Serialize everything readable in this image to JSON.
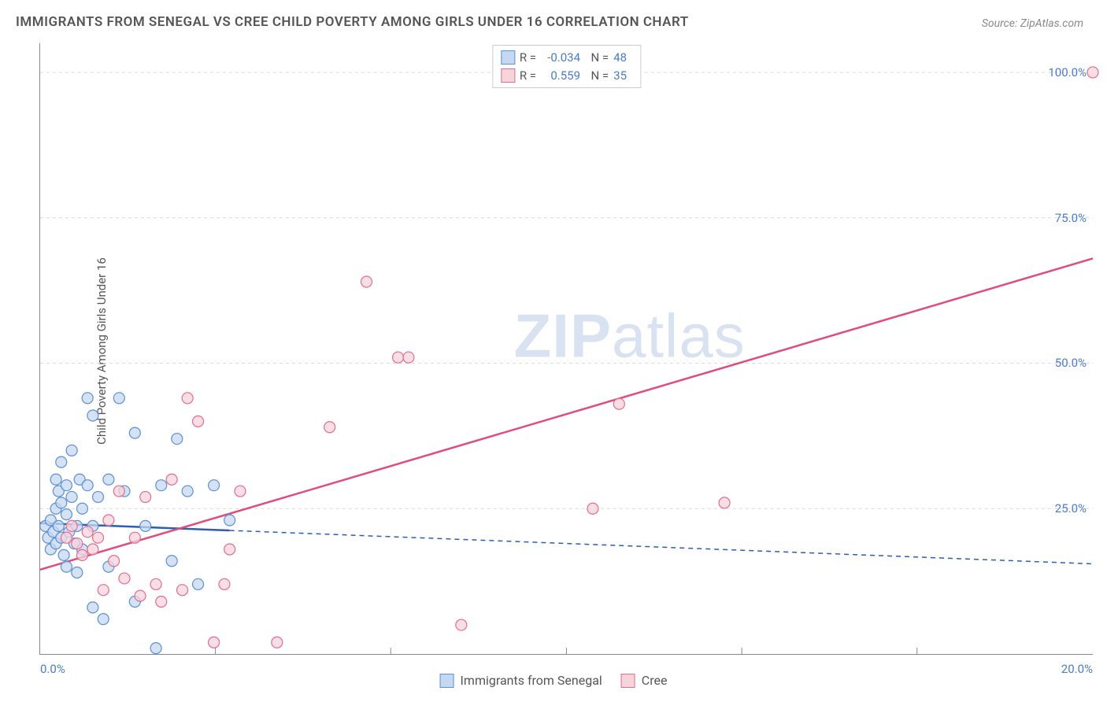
{
  "title": "IMMIGRANTS FROM SENEGAL VS CREE CHILD POVERTY AMONG GIRLS UNDER 16 CORRELATION CHART",
  "source": "Source: ZipAtlas.com",
  "y_axis_label": "Child Poverty Among Girls Under 16",
  "watermark": {
    "bold": "ZIP",
    "rest": "atlas"
  },
  "chart": {
    "type": "scatter",
    "x_domain": [
      0,
      20
    ],
    "y_domain": [
      0,
      105
    ],
    "x_ticks": [
      0,
      20
    ],
    "x_tick_labels": [
      "0.0%",
      "20.0%"
    ],
    "x_minor_ticks": [
      3.33,
      6.66,
      10,
      13.33,
      16.66
    ],
    "y_ticks": [
      25,
      50,
      75,
      100
    ],
    "y_tick_labels": [
      "25.0%",
      "50.0%",
      "75.0%",
      "100.0%"
    ],
    "grid_color": "#d8d8d8",
    "grid_dash": "4 4",
    "background": "#ffffff",
    "marker_radius": 7,
    "marker_stroke_width": 1.2,
    "line_width": 2.5,
    "series": [
      {
        "key": "senegal",
        "label": "Immigrants from Senegal",
        "fill": "#c5d8f0",
        "stroke": "#5b8fd6",
        "line_color": "#2b5fb0",
        "R": "-0.034",
        "N": "48",
        "regression": {
          "x1": 0,
          "y1": 22.5,
          "x2": 20,
          "y2": 15.5,
          "solid_until_x": 3.6
        },
        "points": [
          [
            0.1,
            22
          ],
          [
            0.15,
            20
          ],
          [
            0.2,
            23
          ],
          [
            0.2,
            18
          ],
          [
            0.25,
            21
          ],
          [
            0.3,
            30
          ],
          [
            0.3,
            25
          ],
          [
            0.3,
            19
          ],
          [
            0.35,
            28
          ],
          [
            0.35,
            22
          ],
          [
            0.4,
            33
          ],
          [
            0.4,
            26
          ],
          [
            0.4,
            20
          ],
          [
            0.45,
            17
          ],
          [
            0.5,
            29
          ],
          [
            0.5,
            24
          ],
          [
            0.5,
            15
          ],
          [
            0.55,
            21
          ],
          [
            0.6,
            35
          ],
          [
            0.6,
            27
          ],
          [
            0.65,
            19
          ],
          [
            0.7,
            22
          ],
          [
            0.7,
            14
          ],
          [
            0.75,
            30
          ],
          [
            0.8,
            25
          ],
          [
            0.8,
            18
          ],
          [
            0.9,
            44
          ],
          [
            0.9,
            29
          ],
          [
            1.0,
            41
          ],
          [
            1.0,
            22
          ],
          [
            1.0,
            8
          ],
          [
            1.1,
            27
          ],
          [
            1.2,
            6
          ],
          [
            1.3,
            30
          ],
          [
            1.3,
            15
          ],
          [
            1.5,
            44
          ],
          [
            1.6,
            28
          ],
          [
            1.8,
            38
          ],
          [
            1.8,
            9
          ],
          [
            2.0,
            22
          ],
          [
            2.2,
            1
          ],
          [
            2.3,
            29
          ],
          [
            2.5,
            16
          ],
          [
            2.6,
            37
          ],
          [
            2.8,
            28
          ],
          [
            3.0,
            12
          ],
          [
            3.3,
            29
          ],
          [
            3.6,
            23
          ]
        ]
      },
      {
        "key": "cree",
        "label": "Cree",
        "fill": "#f7d3dc",
        "stroke": "#e06d8e",
        "line_color": "#e04d7b",
        "R": "0.559",
        "N": "35",
        "regression": {
          "x1": 0,
          "y1": 14.5,
          "x2": 20,
          "y2": 68,
          "solid_until_x": 20
        },
        "points": [
          [
            0.5,
            20
          ],
          [
            0.6,
            22
          ],
          [
            0.7,
            19
          ],
          [
            0.8,
            17
          ],
          [
            0.9,
            21
          ],
          [
            1.0,
            18
          ],
          [
            1.1,
            20
          ],
          [
            1.2,
            11
          ],
          [
            1.3,
            23
          ],
          [
            1.4,
            16
          ],
          [
            1.5,
            28
          ],
          [
            1.6,
            13
          ],
          [
            1.8,
            20
          ],
          [
            1.9,
            10
          ],
          [
            2.0,
            27
          ],
          [
            2.2,
            12
          ],
          [
            2.3,
            9
          ],
          [
            2.5,
            30
          ],
          [
            2.7,
            11
          ],
          [
            2.8,
            44
          ],
          [
            3.0,
            40
          ],
          [
            3.3,
            2
          ],
          [
            3.5,
            12
          ],
          [
            3.6,
            18
          ],
          [
            3.8,
            28
          ],
          [
            4.5,
            2
          ],
          [
            5.5,
            39
          ],
          [
            6.2,
            64
          ],
          [
            6.8,
            51
          ],
          [
            7.0,
            51
          ],
          [
            8.0,
            5
          ],
          [
            10.5,
            25
          ],
          [
            11.0,
            43
          ],
          [
            13.0,
            26
          ],
          [
            20.0,
            100
          ]
        ]
      }
    ]
  },
  "bottom_legend": [
    {
      "key": "senegal",
      "label": "Immigrants from Senegal"
    },
    {
      "key": "cree",
      "label": "Cree"
    }
  ]
}
